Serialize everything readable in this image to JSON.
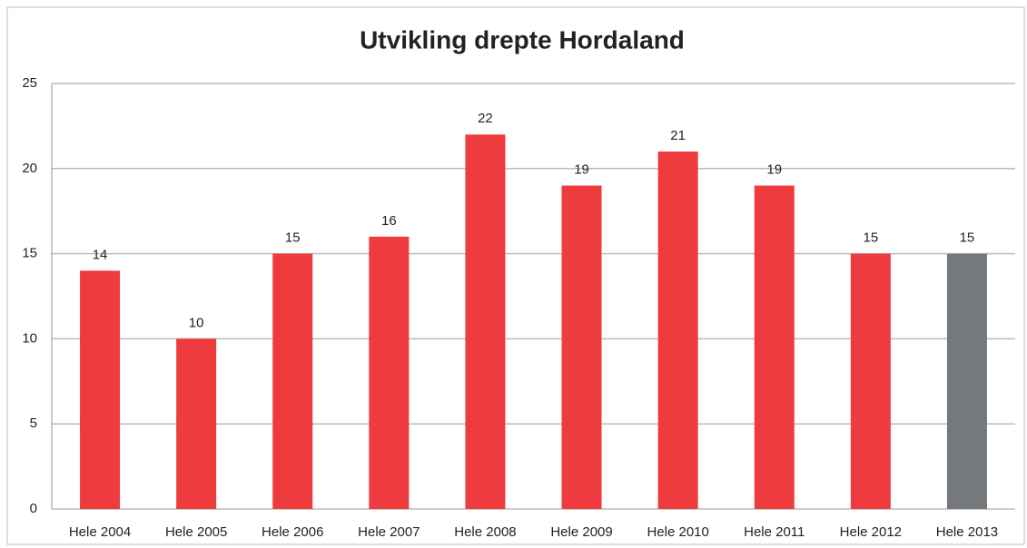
{
  "chart_data": {
    "type": "bar",
    "title": "Utvikling drepte Hordaland",
    "categories": [
      "Hele 2004",
      "Hele 2005",
      "Hele 2006",
      "Hele 2007",
      "Hele 2008",
      "Hele 2009",
      "Hele 2010",
      "Hele 2011",
      "Hele 2012",
      "Hele 2013"
    ],
    "values": [
      14,
      10,
      15,
      16,
      22,
      19,
      21,
      19,
      15,
      15
    ],
    "colors": [
      "#ee3b3d",
      "#ee3b3d",
      "#ee3b3d",
      "#ee3b3d",
      "#ee3b3d",
      "#ee3b3d",
      "#ee3b3d",
      "#ee3b3d",
      "#ee3b3d",
      "#76797c"
    ],
    "ylim": [
      0,
      25
    ],
    "yticks": [
      0,
      5,
      10,
      15,
      20,
      25
    ],
    "grid": true
  }
}
